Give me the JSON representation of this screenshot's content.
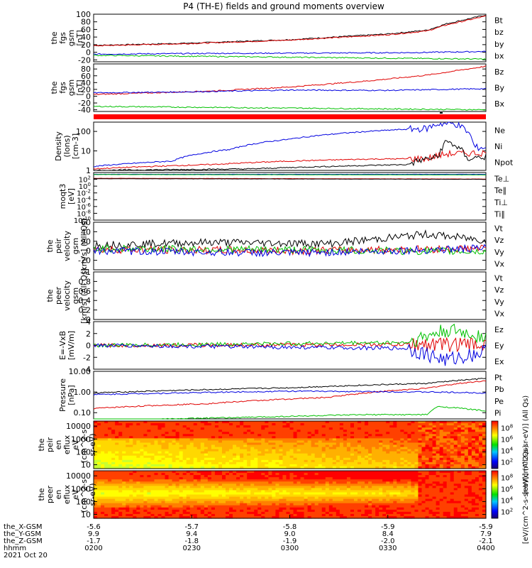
{
  "title": "P4 (TH-E) fields and ground moments overview",
  "chart_data": [
    {
      "id": "fgs_gsm",
      "type": "line",
      "ylabel": [
        "the",
        "fgs",
        "gsm",
        "[nT]"
      ],
      "ylim": [
        -25,
        100
      ],
      "yticks": [
        -20,
        0,
        20,
        40,
        60,
        80,
        100
      ],
      "legend": [
        {
          "name": "Bt",
          "color": "#000000"
        },
        {
          "name": "bz",
          "color": "#e00000"
        },
        {
          "name": "by",
          "color": "#00c000"
        },
        {
          "name": "bx",
          "color": "#0000e0"
        }
      ],
      "series": [
        {
          "name": "Bt",
          "color": "#000000",
          "points": [
            [
              0,
              18
            ],
            [
              0.25,
              24
            ],
            [
              0.5,
              33
            ],
            [
              0.75,
              48
            ],
            [
              0.85,
              58
            ],
            [
              0.9,
              75
            ],
            [
              1,
              98
            ]
          ]
        },
        {
          "name": "bz",
          "color": "#e00000",
          "points": [
            [
              0,
              17
            ],
            [
              0.25,
              23
            ],
            [
              0.5,
              32
            ],
            [
              0.75,
              46
            ],
            [
              0.85,
              56
            ],
            [
              0.9,
              72
            ],
            [
              1,
              95
            ]
          ]
        },
        {
          "name": "by",
          "color": "#0000e0",
          "points": [
            [
              0,
              -5
            ],
            [
              0.3,
              -3
            ],
            [
              0.6,
              -2
            ],
            [
              0.8,
              -1
            ],
            [
              1,
              2
            ]
          ]
        },
        {
          "name": "bx",
          "color": "#00c000",
          "points": [
            [
              0,
              -8
            ],
            [
              0.3,
              -11
            ],
            [
              0.6,
              -14
            ],
            [
              0.8,
              -16
            ],
            [
              1,
              -18
            ]
          ]
        }
      ]
    },
    {
      "id": "fgs_gse",
      "type": "line",
      "ylabel": [
        "the",
        "fgs",
        "gsm",
        "[nT]"
      ],
      "ylim": [
        -45,
        95
      ],
      "yticks": [
        -40,
        -20,
        0,
        20,
        40,
        60,
        80
      ],
      "legend": [
        {
          "name": "Bz",
          "color": "#e00000"
        },
        {
          "name": "By",
          "color": "#00c000"
        },
        {
          "name": "Bx",
          "color": "#0000e0"
        }
      ],
      "series": [
        {
          "name": "Bz",
          "color": "#e00000",
          "points": [
            [
              0,
              5
            ],
            [
              0.3,
              15
            ],
            [
              0.5,
              27
            ],
            [
              0.7,
              45
            ],
            [
              0.85,
              62
            ],
            [
              1,
              88
            ]
          ]
        },
        {
          "name": "By",
          "color": "#0000e0",
          "points": [
            [
              0,
              10
            ],
            [
              0.2,
              12
            ],
            [
              0.5,
              18
            ],
            [
              0.75,
              17
            ],
            [
              1,
              22
            ]
          ]
        },
        {
          "name": "Bx",
          "color": "#00c000",
          "points": [
            [
              0,
              -30
            ],
            [
              0.3,
              -33
            ],
            [
              0.6,
              -36
            ],
            [
              0.8,
              -38
            ],
            [
              1,
              -40
            ]
          ]
        }
      ]
    },
    {
      "id": "density",
      "type": "line",
      "scale": "log",
      "ylabel": [
        "Density",
        "(Ions)",
        "[cm-3]"
      ],
      "ylim": [
        1,
        300
      ],
      "yticks": [
        1,
        10,
        100
      ],
      "legend": [
        {
          "name": "Ne",
          "color": "#e00000"
        },
        {
          "name": "Ni",
          "color": "#000000"
        },
        {
          "name": "Npot",
          "color": "#0000e0"
        }
      ],
      "series": [
        {
          "name": "Npot",
          "color": "#0000e0",
          "points": [
            [
              0,
              1.6
            ],
            [
              0.2,
              3
            ],
            [
              0.35,
              12
            ],
            [
              0.5,
              40
            ],
            [
              0.7,
              100
            ],
            [
              0.8,
              130
            ],
            [
              0.85,
              140
            ],
            [
              0.88,
              250
            ],
            [
              0.92,
              250
            ],
            [
              0.97,
              15
            ],
            [
              1,
              15
            ]
          ]
        },
        {
          "name": "Ne",
          "color": "#e00000",
          "points": [
            [
              0,
              1.2
            ],
            [
              0.3,
              2
            ],
            [
              0.5,
              3
            ],
            [
              0.7,
              3.8
            ],
            [
              0.85,
              4
            ],
            [
              0.9,
              7
            ],
            [
              1,
              8
            ]
          ]
        },
        {
          "name": "Ni",
          "color": "#000000",
          "points": [
            [
              0,
              1
            ],
            [
              0.4,
              1.2
            ],
            [
              0.6,
              1.6
            ],
            [
              0.8,
              2
            ],
            [
              0.88,
              5
            ],
            [
              0.9,
              30
            ],
            [
              0.95,
              4
            ],
            [
              1,
              5
            ]
          ]
        }
      ]
    },
    {
      "id": "moqt3",
      "type": "line",
      "scale": "log",
      "ylabel": [
        "moqt3",
        "[eV]"
      ],
      "ylim": [
        1e-10,
        10000.0
      ],
      "yticks": [
        1e-10,
        1e-08,
        1e-06,
        0.0001,
        0.01,
        1.0,
        100.0
      ],
      "legend": [
        {
          "name": "Te⊥",
          "color": "#e00000"
        },
        {
          "name": "Te∥",
          "color": "#000000"
        },
        {
          "name": "Ti⊥",
          "color": "#0000e0"
        },
        {
          "name": "Ti∥",
          "color": "#00c000"
        }
      ],
      "series": [
        {
          "name": "Ti⊥",
          "color": "#0000e0",
          "points": [
            [
              0,
              3000
            ],
            [
              1,
              3000
            ]
          ]
        },
        {
          "name": "Ti∥",
          "color": "#00c000",
          "points": [
            [
              0,
              2500
            ],
            [
              1,
              2000
            ]
          ]
        },
        {
          "name": "Te⊥",
          "color": "#e00000",
          "points": [
            [
              0,
              200
            ],
            [
              1,
              120
            ]
          ]
        },
        {
          "name": "Te∥",
          "color": "#000000",
          "points": [
            [
              0,
              150
            ],
            [
              1,
              100
            ]
          ]
        }
      ]
    },
    {
      "id": "peir_velocity",
      "type": "line",
      "ylabel": [
        "the",
        "peir",
        "velocity",
        "gsm",
        "[km/s] (All Qs)"
      ],
      "ylim": [
        -40,
        60
      ],
      "yticks": [
        -20,
        0,
        20,
        40,
        60
      ],
      "legend": [
        {
          "name": "Vt",
          "color": "#000000"
        },
        {
          "name": "Vz",
          "color": "#e00000"
        },
        {
          "name": "Vy",
          "color": "#00c000"
        },
        {
          "name": "Vx",
          "color": "#0000e0"
        }
      ],
      "series": [
        {
          "name": "Vt",
          "color": "#000000",
          "points": [
            [
              0,
              12
            ],
            [
              0.3,
              18
            ],
            [
              0.6,
              15
            ],
            [
              0.85,
              35
            ],
            [
              1,
              22
            ]
          ]
        },
        {
          "name": "Vz",
          "color": "#e00000",
          "points": [
            [
              0,
              3
            ],
            [
              0.5,
              0
            ],
            [
              1,
              5
            ]
          ]
        },
        {
          "name": "Vy",
          "color": "#00c000",
          "points": [
            [
              0,
              5
            ],
            [
              0.5,
              2
            ],
            [
              1,
              -2
            ]
          ]
        },
        {
          "name": "Vx",
          "color": "#0000e0",
          "points": [
            [
              0,
              0
            ],
            [
              0.5,
              -5
            ],
            [
              1,
              5
            ]
          ]
        }
      ]
    },
    {
      "id": "peer_velocity",
      "type": "line",
      "ylabel": [
        "the",
        "peer",
        "velocity",
        "gsm",
        "[km/s] (All Qs)"
      ],
      "ylim": [
        0,
        1
      ],
      "yticks": [
        0.0,
        0.2,
        0.4,
        0.6,
        0.8,
        1.0
      ],
      "legend": [
        {
          "name": "Vt",
          "color": "#000000"
        },
        {
          "name": "Vz",
          "color": "#e00000"
        },
        {
          "name": "Vy",
          "color": "#00c000"
        },
        {
          "name": "Vx",
          "color": "#0000e0"
        }
      ],
      "series": []
    },
    {
      "id": "efield",
      "type": "line",
      "ylabel": [
        "E=-VxB",
        "[mV/m]"
      ],
      "ylim": [
        -4,
        4
      ],
      "yticks": [
        -4,
        -2,
        0,
        2,
        4
      ],
      "legend": [
        {
          "name": "Ez",
          "color": "#e00000"
        },
        {
          "name": "Ey",
          "color": "#00c000"
        },
        {
          "name": "Ex",
          "color": "#0000e0"
        }
      ],
      "series": [
        {
          "name": "Ez",
          "color": "#e00000",
          "points": [
            [
              0,
              0
            ],
            [
              1,
              0.2
            ]
          ]
        },
        {
          "name": "Ey",
          "color": "#00c000",
          "points": [
            [
              0,
              0
            ],
            [
              0.8,
              0.5
            ],
            [
              0.9,
              2.5
            ],
            [
              1,
              1.5
            ]
          ]
        },
        {
          "name": "Ex",
          "color": "#0000e0",
          "points": [
            [
              0,
              0
            ],
            [
              0.8,
              -0.5
            ],
            [
              0.9,
              -2.5
            ],
            [
              1,
              -1
            ]
          ]
        }
      ]
    },
    {
      "id": "pressure",
      "type": "line",
      "scale": "log",
      "ylabel": [
        "Pressure",
        "[nPa]"
      ],
      "ylim": [
        0.05,
        10
      ],
      "yticks": [
        0.1,
        1.0,
        10.0
      ],
      "tick_labels": [
        "0.10",
        "1.00",
        "10.00"
      ],
      "legend": [
        {
          "name": "Pt",
          "color": "#000000"
        },
        {
          "name": "Pb",
          "color": "#e00000"
        },
        {
          "name": "Pe",
          "color": "#00c000"
        },
        {
          "name": "Pi",
          "color": "#0000e0"
        }
      ],
      "series": [
        {
          "name": "Pt",
          "color": "#000000",
          "points": [
            [
              0,
              0.9
            ],
            [
              0.5,
              1.6
            ],
            [
              0.85,
              2.6
            ],
            [
              1,
              4.5
            ]
          ]
        },
        {
          "name": "Pb",
          "color": "#e00000",
          "points": [
            [
              0,
              0.16
            ],
            [
              0.3,
              0.28
            ],
            [
              0.6,
              0.55
            ],
            [
              0.85,
              1.5
            ],
            [
              1,
              3.5
            ]
          ]
        },
        {
          "name": "Pi",
          "color": "#0000e0",
          "points": [
            [
              0,
              0.75
            ],
            [
              0.5,
              1.1
            ],
            [
              0.85,
              1.0
            ],
            [
              1,
              0.9
            ]
          ]
        },
        {
          "name": "Pe",
          "color": "#00c000",
          "points": [
            [
              0,
              0.04
            ],
            [
              0.4,
              0.06
            ],
            [
              0.7,
              0.08
            ],
            [
              0.85,
              0.08
            ],
            [
              0.88,
              0.2
            ],
            [
              1,
              0.12
            ]
          ]
        }
      ]
    },
    {
      "id": "peir_spec",
      "type": "heatmap",
      "ylabel": [
        "the",
        "peir",
        "en",
        "eflux",
        "eV",
        "(cm^2-s-",
        "sr-eV)"
      ],
      "ylim": [
        5,
        25000
      ],
      "yticks": [
        10,
        100,
        1000,
        10000
      ],
      "colorbar_label": "[eV/(cm^2-s-sr-eV)] (All Qs)",
      "colorbar_ticks": [
        {
          "value": "10",
          "sup": "2"
        },
        {
          "value": "10",
          "sup": "4"
        },
        {
          "value": "10",
          "sup": "6"
        },
        {
          "value": "10",
          "sup": "8"
        }
      ]
    },
    {
      "id": "peer_spec",
      "type": "heatmap",
      "ylabel": [
        "the",
        "peer",
        "en",
        "eflux",
        "eV",
        "(cm^2-s-",
        "sr-eV)"
      ],
      "ylim": [
        5,
        25000
      ],
      "yticks": [
        10,
        100,
        1000,
        10000
      ],
      "colorbar_label": "[eV/(cm^2-s-sr-eV)] (All Qs)",
      "colorbar_ticks": [
        {
          "value": "10",
          "sup": "2"
        },
        {
          "value": "10",
          "sup": "4"
        },
        {
          "value": "10",
          "sup": "6"
        },
        {
          "value": "10",
          "sup": "8"
        }
      ]
    }
  ],
  "xaxis": {
    "row_labels": [
      "the_X-GSM",
      "the_Y-GSM",
      "the_Z-GSM",
      "hhmm",
      "2021 Oct 20"
    ],
    "ticks": [
      {
        "pos": 0.0,
        "values": [
          "-5.6",
          "9.9",
          "-1.7",
          "0200"
        ]
      },
      {
        "pos": 0.25,
        "values": [
          "-5.7",
          "9.4",
          "-1.8",
          "0230"
        ]
      },
      {
        "pos": 0.5,
        "values": [
          "-5.8",
          "9.0",
          "-1.9",
          "0300"
        ]
      },
      {
        "pos": 0.75,
        "values": [
          "-5.9",
          "8.4",
          "-2.0",
          "0330"
        ]
      },
      {
        "pos": 1.0,
        "values": [
          "-5.9",
          "7.9",
          "-2.1",
          "0400"
        ]
      }
    ]
  }
}
